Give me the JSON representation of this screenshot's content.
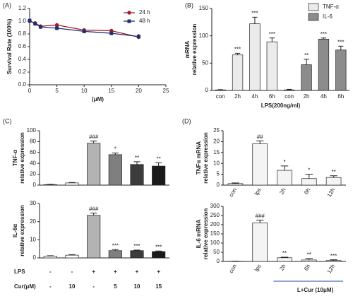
{
  "chart_data": [
    {
      "type": "line",
      "panel": "(A)",
      "ylabel": [
        "Survival Rate (100%)"
      ],
      "xlabel": "(μM)",
      "x": [
        0,
        1,
        2,
        5,
        10,
        15,
        20
      ],
      "xlim": [
        0,
        25
      ],
      "xticks": [
        0,
        5,
        10,
        15,
        20,
        25
      ],
      "ylim": [
        0,
        1.2
      ],
      "yticks": [
        {
          "value": 0,
          "label": "0.0"
        },
        {
          "value": 0.2,
          "label": "0.2"
        },
        {
          "value": 0.4,
          "label": "0.4"
        },
        {
          "value": 0.6,
          "label": "0.6"
        },
        {
          "value": 0.8,
          "label": "0.8"
        },
        {
          "value": 1,
          "label": "1.0"
        },
        {
          "value": 1.2,
          "label": "1.2"
        }
      ],
      "legend": "upper right",
      "series": [
        {
          "name": "24 h",
          "color": "#a01c2c",
          "marker": "circle",
          "values": [
            1.0,
            0.97,
            0.92,
            0.94,
            0.86,
            0.85,
            0.75
          ],
          "errors": [
            0.04,
            0.03,
            0.03,
            0.03,
            0.02,
            0.03,
            0.03
          ]
        },
        {
          "name": "48 h",
          "color": "#1f2f6e",
          "marker": "square",
          "values": [
            1.01,
            0.96,
            0.91,
            0.89,
            0.84,
            0.81,
            0.76
          ],
          "errors": [
            0.04,
            0.03,
            0.03,
            0.03,
            0.03,
            0.03,
            0.04
          ]
        }
      ]
    },
    {
      "type": "bar",
      "panel": "(B)",
      "ylabel": [
        "mRNA",
        "relative expression"
      ],
      "xlabel": "LPS(200ng/ml)",
      "categories": [
        "con",
        "2h",
        "4h",
        "6h",
        "con",
        "2h",
        "4h",
        "6h"
      ],
      "ylim": [
        0,
        150
      ],
      "yticks": [
        0,
        50,
        100,
        150
      ],
      "legend": "upper right",
      "series": [
        {
          "name": "TNF-α",
          "color": "#ebebeb",
          "values": [
            1,
            65,
            122,
            89,
            null,
            null,
            null,
            null
          ],
          "errors": [
            0.5,
            3,
            12,
            7,
            null,
            null,
            null,
            null
          ],
          "annotations": [
            null,
            "***",
            "***",
            "***",
            null,
            null,
            null,
            null
          ]
        },
        {
          "name": "IL-6",
          "color": "#8c8c8c",
          "values": [
            null,
            null,
            null,
            null,
            1,
            47,
            94,
            74
          ],
          "errors": [
            null,
            null,
            null,
            null,
            1,
            10,
            2,
            7
          ],
          "annotations": [
            null,
            null,
            null,
            null,
            null,
            "**",
            "***",
            "***"
          ]
        }
      ]
    },
    {
      "type": "bar",
      "panel": "(C)",
      "ylabel": [
        "TNF-α",
        "relative expression"
      ],
      "categories": [
        null,
        null,
        null,
        null,
        null,
        null
      ],
      "ylim": [
        0,
        100
      ],
      "yticks": [
        0,
        20,
        40,
        60,
        80,
        100
      ],
      "series": [
        {
          "colors": [
            "#ffffff",
            "#ffffff",
            "#b3b3b3",
            "#7f7f7f",
            "#3c3c3c",
            "#1a1a1a"
          ],
          "values": [
            1,
            4,
            77,
            56,
            38,
            35
          ],
          "errors": [
            0.5,
            0.8,
            4,
            3,
            5,
            6
          ],
          "annotations": [
            null,
            null,
            "###",
            "*",
            "**",
            "**"
          ]
        }
      ]
    },
    {
      "type": "bar",
      "ylabel": [
        "IL-6α",
        "relative expression"
      ],
      "categories": [
        null,
        null,
        null,
        null,
        null,
        null
      ],
      "ylim": [
        0,
        30
      ],
      "yticks": [
        0,
        10,
        20,
        30
      ],
      "series": [
        {
          "colors": [
            "#ffffff",
            "#ffffff",
            "#b3b3b3",
            "#7f7f7f",
            "#3c3c3c",
            "#1a1a1a"
          ],
          "values": [
            1,
            1.5,
            23.5,
            4,
            4,
            3.5
          ],
          "errors": [
            0.2,
            0.3,
            1.2,
            0.6,
            0.3,
            0.3
          ],
          "annotations": [
            null,
            null,
            "###",
            "***",
            "***",
            "***"
          ]
        }
      ],
      "conditions": [
        {
          "label": "LPS",
          "values": [
            "-",
            "-",
            "+",
            "+",
            "+",
            "+"
          ]
        },
        {
          "label": "Cur(μM)",
          "values": [
            "-",
            "10",
            "-",
            "5",
            "10",
            "15"
          ]
        }
      ]
    },
    {
      "type": "bar",
      "panel": "(D)",
      "ylabel": [
        "TNFα mRNA",
        "relative expression"
      ],
      "categories": [
        "con",
        "lps",
        "2h",
        "6h",
        "12h"
      ],
      "ylim": [
        0,
        25
      ],
      "yticks": [
        0,
        5,
        10,
        15,
        20,
        25
      ],
      "series": [
        {
          "color": "#f4f4f4",
          "values": [
            0.7,
            19,
            6.8,
            3,
            3.5
          ],
          "errors": [
            0.3,
            1.3,
            2,
            2,
            0.8
          ],
          "annotations": [
            null,
            "##",
            "*",
            "*",
            "**"
          ]
        }
      ]
    },
    {
      "type": "bar",
      "ylabel": [
        "IL-6 mRNA",
        "relative expression"
      ],
      "categories": [
        "con",
        "lps",
        "2h",
        "6h",
        "12h"
      ],
      "ylim": [
        0,
        300
      ],
      "yticks": [
        0,
        50,
        100,
        150,
        200,
        250,
        300
      ],
      "group_label": "L+Cur (10μM)",
      "series": [
        {
          "color": "#f4f4f4",
          "values": [
            1,
            210,
            20,
            8,
            5
          ],
          "errors": [
            0.5,
            15,
            3,
            8,
            4
          ],
          "annotations": [
            null,
            "###",
            "**",
            "**",
            "***"
          ]
        }
      ]
    }
  ]
}
